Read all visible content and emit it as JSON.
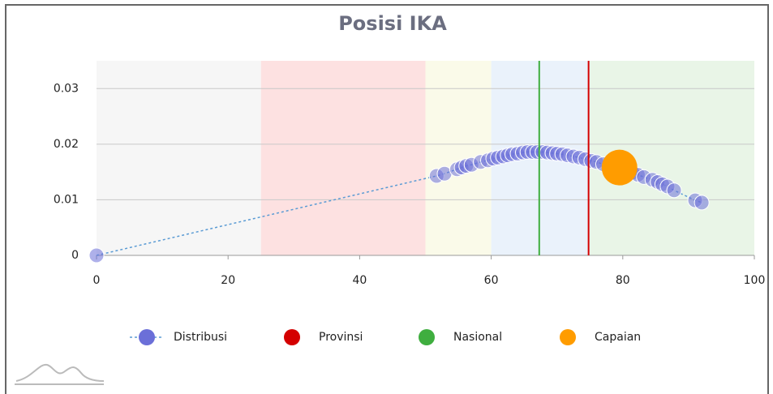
{
  "chart_data": {
    "type": "scatter",
    "title": "Posisi IKA",
    "xlim": [
      0,
      100
    ],
    "xticks": [
      0,
      20,
      40,
      60,
      80,
      100
    ],
    "ylim": [
      0,
      0.035
    ],
    "yticks": [
      0,
      0.01,
      0.02,
      0.03
    ],
    "grid": true,
    "bands": [
      {
        "from": 0,
        "to": 25,
        "color": "#f6f6f6"
      },
      {
        "from": 25,
        "to": 50,
        "color": "#fde1e1"
      },
      {
        "from": 50,
        "to": 60,
        "color": "#fafae9"
      },
      {
        "from": 60,
        "to": 75,
        "color": "#eaf2fb"
      },
      {
        "from": 75,
        "to": 100,
        "color": "#e9f5e7"
      }
    ],
    "legend": "bottom",
    "series": [
      {
        "name": "Distribusi",
        "color": "#6b6fd8",
        "line_color": "#5a9bd4",
        "x": [
          0,
          51.7,
          52.9,
          54.8,
          55.5,
          56.2,
          57.0,
          58.4,
          59.5,
          60.3,
          61.0,
          61.8,
          62.5,
          63.2,
          64.0,
          64.8,
          65.5,
          66.3,
          67.0,
          67.8,
          68.5,
          69.3,
          70.0,
          70.8,
          71.6,
          72.5,
          73.4,
          74.3,
          75.2,
          76.0,
          77.0,
          78.0,
          80.5,
          81.5,
          82.3,
          83.2,
          84.5,
          85.3,
          86.0,
          86.8,
          87.8,
          91.0,
          92.0
        ],
        "values": [
          0,
          0.0143,
          0.0147,
          0.0155,
          0.0158,
          0.0161,
          0.0163,
          0.0168,
          0.0171,
          0.0174,
          0.0176,
          0.0178,
          0.018,
          0.0182,
          0.0183,
          0.0185,
          0.0186,
          0.0186,
          0.0186,
          0.0186,
          0.0185,
          0.0184,
          0.0183,
          0.0182,
          0.018,
          0.0178,
          0.0176,
          0.0173,
          0.017,
          0.0168,
          0.0164,
          0.0161,
          0.0153,
          0.0149,
          0.0145,
          0.0141,
          0.0136,
          0.0132,
          0.0128,
          0.0124,
          0.0117,
          0.0099,
          0.0095
        ]
      },
      {
        "name": "Provinsi",
        "color": "#d40000",
        "x": [
          74.8
        ]
      },
      {
        "name": "Nasional",
        "color": "#3fae3f",
        "x": [
          67.3
        ]
      },
      {
        "name": "Capaian",
        "color": "#ff9c00",
        "x": [
          79.5
        ],
        "values": [
          0.0158
        ]
      }
    ]
  }
}
